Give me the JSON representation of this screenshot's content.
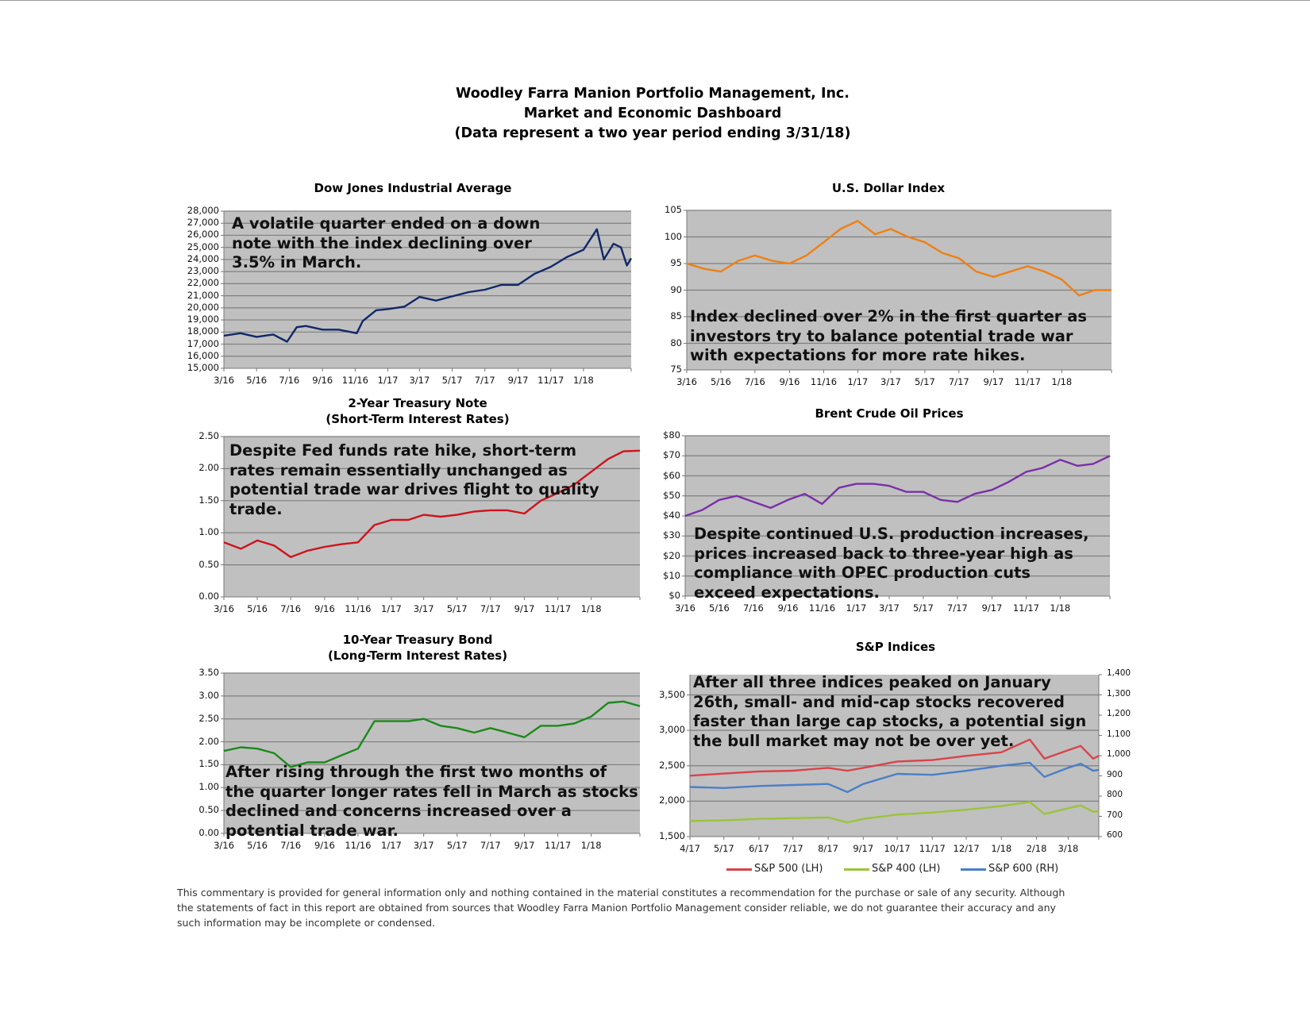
{
  "header": {
    "lines": [
      "Woodley Farra Manion Portfolio Management, Inc.",
      "Market and Economic Dashboard",
      "(Data represent a two year period ending 3/31/18)"
    ]
  },
  "footer": {
    "lines": [
      "This commentary is provided for general information only and nothing contained in the material constitutes a recommendation for the purchase or sale of any security. Although",
      "the statements of fact in this report are obtained from sources that Woodley Farra Manion Portfolio Management consider reliable, we do not guarantee their accuracy and any",
      "such information may be incomplete or condensed."
    ]
  },
  "chart_data": [
    {
      "type": "line",
      "title": [
        "Dow Jones Industrial Average"
      ],
      "annotation": [
        "A volatile quarter ended on a down",
        "note with the index declining over",
        "3.5% in March."
      ],
      "xlim": [
        "2016-03-01",
        "2018-03-31"
      ],
      "xticks": [
        "2016-03-01",
        "2016-05-01",
        "2016-07-01",
        "2016-09-01",
        "2016-11-01",
        "2017-01-01",
        "2017-03-01",
        "2017-05-01",
        "2017-07-01",
        "2017-09-01",
        "2017-11-01",
        "2018-01-01"
      ],
      "xtick_labels": [
        "3/16",
        "5/16",
        "7/16",
        "9/16",
        "11/16",
        "1/17",
        "3/17",
        "5/17",
        "7/17",
        "9/17",
        "11/17",
        "1/18"
      ],
      "ylim": [
        15000,
        28000
      ],
      "yticks": [
        15000,
        16000,
        17000,
        18000,
        19000,
        20000,
        21000,
        22000,
        23000,
        24000,
        25000,
        26000,
        27000,
        28000
      ],
      "ytick_labels": [
        "15,000",
        "16,000",
        "17,000",
        "18,000",
        "19,000",
        "20,000",
        "21,000",
        "22,000",
        "23,000",
        "24,000",
        "25,000",
        "26,000",
        "27,000",
        "28,000"
      ],
      "grid": true,
      "series": [
        {
          "color": "#10286a",
          "x": [
            "2016-03-01",
            "2016-04-01",
            "2016-05-01",
            "2016-06-01",
            "2016-06-27",
            "2016-07-15",
            "2016-08-01",
            "2016-09-01",
            "2016-10-01",
            "2016-11-04",
            "2016-11-15",
            "2016-12-10",
            "2017-01-01",
            "2017-02-01",
            "2017-03-01",
            "2017-04-01",
            "2017-05-01",
            "2017-06-01",
            "2017-07-01",
            "2017-08-01",
            "2017-09-01",
            "2017-10-01",
            "2017-11-01",
            "2017-12-01",
            "2018-01-01",
            "2018-01-26",
            "2018-02-08",
            "2018-02-26",
            "2018-03-12",
            "2018-03-23",
            "2018-03-31"
          ],
          "y": [
            17700,
            17900,
            17600,
            17800,
            17200,
            18400,
            18500,
            18200,
            18200,
            17900,
            18900,
            19800,
            19900,
            20100,
            20900,
            20600,
            20950,
            21300,
            21500,
            21900,
            21900,
            22800,
            23400,
            24200,
            24800,
            26500,
            24000,
            25300,
            25000,
            23500,
            24100
          ]
        }
      ]
    },
    {
      "type": "line",
      "title": [
        "U.S. Dollar Index"
      ],
      "annotation": [
        "Index declined over 2% in the first quarter as",
        "investors try to balance potential trade war",
        "with expectations for more rate hikes."
      ],
      "xlim": [
        "2016-03-01",
        "2018-03-31"
      ],
      "xticks": [
        "2016-03-01",
        "2016-05-01",
        "2016-07-01",
        "2016-09-01",
        "2016-11-01",
        "2017-01-01",
        "2017-03-01",
        "2017-05-01",
        "2017-07-01",
        "2017-09-01",
        "2017-11-01",
        "2018-01-01"
      ],
      "xtick_labels": [
        "3/16",
        "5/16",
        "7/16",
        "9/16",
        "11/16",
        "1/17",
        "3/17",
        "5/17",
        "7/17",
        "9/17",
        "11/17",
        "1/18"
      ],
      "ylim": [
        75,
        105
      ],
      "yticks": [
        75,
        80,
        85,
        90,
        95,
        100,
        105
      ],
      "ytick_labels": [
        "75",
        "80",
        "85",
        "90",
        "95",
        "100",
        "105"
      ],
      "grid": true,
      "series": [
        {
          "color": "#f07f12",
          "x": [
            "2016-03-01",
            "2016-04-01",
            "2016-05-01",
            "2016-06-01",
            "2016-07-01",
            "2016-08-01",
            "2016-09-01",
            "2016-10-01",
            "2016-11-01",
            "2016-12-01",
            "2017-01-01",
            "2017-02-01",
            "2017-03-01",
            "2017-04-01",
            "2017-05-01",
            "2017-06-01",
            "2017-07-01",
            "2017-08-01",
            "2017-09-01",
            "2017-10-01",
            "2017-11-01",
            "2017-12-01",
            "2018-01-01",
            "2018-02-01",
            "2018-03-01",
            "2018-03-31"
          ],
          "y": [
            95,
            94,
            93.5,
            95.5,
            96.5,
            95.5,
            95,
            96.5,
            99,
            101.5,
            103,
            100.5,
            101.5,
            100,
            99,
            97,
            96,
            93.5,
            92.5,
            93.5,
            94.5,
            93.5,
            92,
            89,
            90,
            90
          ]
        }
      ]
    },
    {
      "type": "line",
      "title": [
        "2-Year Treasury Note",
        "(Short-Term Interest Rates)"
      ],
      "annotation": [
        "Despite Fed funds rate hike, short-term",
        "rates remain essentially unchanged as",
        "potential trade war drives flight to quality",
        "trade."
      ],
      "xlim": [
        "2016-03-01",
        "2018-03-31"
      ],
      "xticks": [
        "2016-03-01",
        "2016-05-01",
        "2016-07-01",
        "2016-09-01",
        "2016-11-01",
        "2017-01-01",
        "2017-03-01",
        "2017-05-01",
        "2017-07-01",
        "2017-09-01",
        "2017-11-01",
        "2018-01-01"
      ],
      "xtick_labels": [
        "3/16",
        "5/16",
        "7/16",
        "9/16",
        "11/16",
        "1/17",
        "3/17",
        "5/17",
        "7/17",
        "9/17",
        "11/17",
        "1/18"
      ],
      "ylim": [
        0,
        2.5
      ],
      "yticks": [
        0,
        0.5,
        1,
        1.5,
        2,
        2.5
      ],
      "ytick_labels": [
        "0.00",
        "0.50",
        "1.00",
        "1.50",
        "2.00",
        "2.50"
      ],
      "grid": true,
      "series": [
        {
          "color": "#d0121b",
          "x": [
            "2016-03-01",
            "2016-04-01",
            "2016-05-01",
            "2016-06-01",
            "2016-07-01",
            "2016-08-01",
            "2016-09-01",
            "2016-10-01",
            "2016-11-01",
            "2016-12-01",
            "2017-01-01",
            "2017-02-01",
            "2017-03-01",
            "2017-04-01",
            "2017-05-01",
            "2017-06-01",
            "2017-07-01",
            "2017-08-01",
            "2017-09-01",
            "2017-10-01",
            "2017-11-01",
            "2017-12-01",
            "2018-01-01",
            "2018-02-01",
            "2018-03-01",
            "2018-03-31"
          ],
          "y": [
            0.85,
            0.75,
            0.88,
            0.8,
            0.62,
            0.72,
            0.78,
            0.82,
            0.85,
            1.12,
            1.2,
            1.2,
            1.28,
            1.25,
            1.28,
            1.33,
            1.35,
            1.35,
            1.3,
            1.5,
            1.62,
            1.75,
            1.95,
            2.15,
            2.27,
            2.28
          ]
        }
      ]
    },
    {
      "type": "line",
      "title": [
        "Brent Crude Oil Prices"
      ],
      "annotation": [
        "Despite continued U.S. production increases,",
        "prices increased back to three-year high as",
        "compliance with OPEC production cuts",
        "exceed expectations."
      ],
      "xlim": [
        "2016-03-01",
        "2018-03-31"
      ],
      "xticks": [
        "2016-03-01",
        "2016-05-01",
        "2016-07-01",
        "2016-09-01",
        "2016-11-01",
        "2017-01-01",
        "2017-03-01",
        "2017-05-01",
        "2017-07-01",
        "2017-09-01",
        "2017-11-01",
        "2018-01-01"
      ],
      "xtick_labels": [
        "3/16",
        "5/16",
        "7/16",
        "9/16",
        "11/16",
        "1/17",
        "3/17",
        "5/17",
        "7/17",
        "9/17",
        "11/17",
        "1/18"
      ],
      "ylim": [
        0,
        80
      ],
      "yticks": [
        0,
        10,
        20,
        30,
        40,
        50,
        60,
        70,
        80
      ],
      "ytick_labels": [
        "$0",
        "$10",
        "$20",
        "$30",
        "$40",
        "$50",
        "$60",
        "$70",
        "$80"
      ],
      "grid": true,
      "series": [
        {
          "color": "#7b2fa8",
          "x": [
            "2016-03-01",
            "2016-04-01",
            "2016-05-01",
            "2016-06-01",
            "2016-07-01",
            "2016-08-01",
            "2016-09-01",
            "2016-10-01",
            "2016-11-01",
            "2016-12-01",
            "2017-01-01",
            "2017-02-01",
            "2017-03-01",
            "2017-04-01",
            "2017-05-01",
            "2017-06-01",
            "2017-07-01",
            "2017-08-01",
            "2017-09-01",
            "2017-10-01",
            "2017-11-01",
            "2017-12-01",
            "2018-01-01",
            "2018-02-01",
            "2018-03-01",
            "2018-03-31"
          ],
          "y": [
            40,
            43,
            48,
            50,
            47,
            44,
            48,
            51,
            46,
            54,
            56,
            56,
            55,
            52,
            52,
            48,
            47,
            51,
            53,
            57,
            62,
            64,
            68,
            65,
            66,
            70
          ]
        }
      ]
    },
    {
      "type": "line",
      "title": [
        "10-Year Treasury Bond",
        "(Long-Term Interest Rates)"
      ],
      "annotation": [
        "After rising through the first two months of",
        "the quarter longer rates fell in March as stocks",
        "declined and concerns increased over a",
        "potential trade war."
      ],
      "xlim": [
        "2016-03-01",
        "2018-03-31"
      ],
      "xticks": [
        "2016-03-01",
        "2016-05-01",
        "2016-07-01",
        "2016-09-01",
        "2016-11-01",
        "2017-01-01",
        "2017-03-01",
        "2017-05-01",
        "2017-07-01",
        "2017-09-01",
        "2017-11-01",
        "2018-01-01"
      ],
      "xtick_labels": [
        "3/16",
        "5/16",
        "7/16",
        "9/16",
        "11/16",
        "1/17",
        "3/17",
        "5/17",
        "7/17",
        "9/17",
        "11/17",
        "1/18"
      ],
      "ylim": [
        0,
        3.5
      ],
      "yticks": [
        0,
        0.5,
        1,
        1.5,
        2,
        2.5,
        3,
        3.5
      ],
      "ytick_labels": [
        "0.00",
        "0.50",
        "1.00",
        "1.50",
        "2.00",
        "2.50",
        "3.00",
        "3.50"
      ],
      "grid": true,
      "series": [
        {
          "color": "#1a8a1a",
          "x": [
            "2016-03-01",
            "2016-04-01",
            "2016-05-01",
            "2016-06-01",
            "2016-07-01",
            "2016-08-01",
            "2016-09-01",
            "2016-10-01",
            "2016-11-01",
            "2016-12-01",
            "2017-01-01",
            "2017-02-01",
            "2017-03-01",
            "2017-04-01",
            "2017-05-01",
            "2017-06-01",
            "2017-07-01",
            "2017-08-01",
            "2017-09-01",
            "2017-10-01",
            "2017-11-01",
            "2017-12-01",
            "2018-01-01",
            "2018-02-01",
            "2018-03-01",
            "2018-03-31"
          ],
          "y": [
            1.8,
            1.88,
            1.85,
            1.75,
            1.45,
            1.55,
            1.55,
            1.7,
            1.85,
            2.45,
            2.45,
            2.45,
            2.5,
            2.35,
            2.3,
            2.2,
            2.3,
            2.2,
            2.1,
            2.35,
            2.35,
            2.4,
            2.55,
            2.85,
            2.88,
            2.78
          ]
        }
      ]
    },
    {
      "type": "line",
      "title": [
        "S&P Indices"
      ],
      "annotation": [
        "After all three indices peaked on January",
        "26th, small- and mid-cap stocks recovered",
        "faster than large cap stocks, a potential sign",
        "the bull market may not be over yet."
      ],
      "xlim": [
        "2017-04-01",
        "2018-03-28"
      ],
      "xticks": [
        "2017-04-01",
        "2017-05-01",
        "2017-06-01",
        "2017-07-01",
        "2017-08-01",
        "2017-09-01",
        "2017-10-01",
        "2017-11-01",
        "2017-12-01",
        "2018-01-01",
        "2018-02-01",
        "2018-03-01"
      ],
      "xtick_labels": [
        "4/17",
        "5/17",
        "6/17",
        "7/17",
        "8/17",
        "9/17",
        "10/17",
        "11/17",
        "12/17",
        "1/18",
        "2/18",
        "3/18"
      ],
      "ylim": [
        1500,
        3786
      ],
      "yticks": [
        1500,
        2000,
        2500,
        3000,
        3500
      ],
      "ytick_labels": [
        "1,500",
        "2,000",
        "2,500",
        "3,000",
        "3,500"
      ],
      "y2lim": [
        600,
        1400
      ],
      "y2ticks": [
        600,
        700,
        800,
        900,
        1000,
        1100,
        1200,
        1300,
        1400
      ],
      "y2tick_labels": [
        "600",
        "700",
        "800",
        "900",
        "1,000",
        "1,100",
        "1,200",
        "1,300",
        "1,400"
      ],
      "grid": true,
      "legend": "bottom",
      "series": [
        {
          "name": "S&P 500 (LH)",
          "axis": "left",
          "color": "#d9434a",
          "x": [
            "2017-04-01",
            "2017-05-01",
            "2017-06-01",
            "2017-07-01",
            "2017-08-01",
            "2017-08-18",
            "2017-09-01",
            "2017-10-01",
            "2017-11-01",
            "2017-12-01",
            "2018-01-01",
            "2018-01-26",
            "2018-02-08",
            "2018-03-01",
            "2018-03-12",
            "2018-03-23",
            "2018-03-28"
          ],
          "y": [
            2360,
            2390,
            2420,
            2430,
            2470,
            2430,
            2470,
            2560,
            2580,
            2640,
            2690,
            2870,
            2600,
            2720,
            2780,
            2600,
            2640
          ]
        },
        {
          "name": "S&P 400 (LH)",
          "axis": "left",
          "color": "#9bc43c",
          "x": [
            "2017-04-01",
            "2017-05-01",
            "2017-06-01",
            "2017-07-01",
            "2017-08-01",
            "2017-08-18",
            "2017-09-01",
            "2017-10-01",
            "2017-11-01",
            "2017-12-01",
            "2018-01-01",
            "2018-01-26",
            "2018-02-08",
            "2018-03-01",
            "2018-03-12",
            "2018-03-23",
            "2018-03-28"
          ],
          "y": [
            1720,
            1730,
            1750,
            1760,
            1770,
            1700,
            1750,
            1810,
            1840,
            1880,
            1930,
            1990,
            1820,
            1900,
            1940,
            1850,
            1860
          ]
        },
        {
          "name": "S&P 600 (RH)",
          "axis": "right",
          "color": "#4a7fc8",
          "x": [
            "2017-04-01",
            "2017-05-01",
            "2017-06-01",
            "2017-07-01",
            "2017-08-01",
            "2017-08-18",
            "2017-09-01",
            "2017-10-01",
            "2017-11-01",
            "2017-12-01",
            "2018-01-01",
            "2018-01-26",
            "2018-02-08",
            "2018-03-01",
            "2018-03-12",
            "2018-03-23",
            "2018-03-28"
          ],
          "y": [
            845,
            840,
            850,
            855,
            860,
            820,
            860,
            910,
            905,
            925,
            950,
            965,
            895,
            940,
            960,
            925,
            930
          ]
        }
      ]
    }
  ]
}
